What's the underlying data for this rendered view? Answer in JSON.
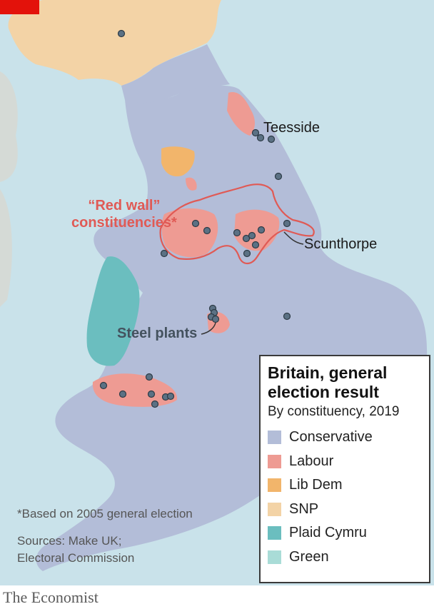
{
  "map": {
    "labels": {
      "teesside": "Teesside",
      "red_wall_line1": "“Red wall”",
      "red_wall_line2": "constituencies*",
      "scunthorpe": "Scunthorpe",
      "steel_plants": "Steel plants"
    },
    "colors": {
      "sea": "#c9e2ea",
      "conservative": "#b3bdd8",
      "labour": "#ee9b93",
      "lib_dem": "#f2b56b",
      "snp": "#f3d3a6",
      "plaid_cymru": "#6bbebf",
      "green": "#a9dcd7",
      "red_wall_outline": "#e05a55",
      "steel_plant_marker": "#5b7184",
      "other_land": "#d5dad6"
    },
    "icons": {
      "steel_plant": "circle-marker-icon"
    }
  },
  "legend": {
    "title_line1": "Britain, general",
    "title_line2": "election result",
    "subtitle": "By constituency, 2019",
    "items": [
      {
        "label": "Conservative",
        "color": "#b3bdd8"
      },
      {
        "label": "Labour",
        "color": "#ee9b93"
      },
      {
        "label": "Lib Dem",
        "color": "#f2b56b"
      },
      {
        "label": "SNP",
        "color": "#f3d3a6"
      },
      {
        "label": "Plaid Cymru",
        "color": "#6bbebf"
      },
      {
        "label": "Green",
        "color": "#a9dcd7"
      }
    ]
  },
  "footnote": "*Based on 2005 general election",
  "sources_line1": "Sources: Make UK;",
  "sources_line2": "Electoral Commission",
  "brand": "The Economist"
}
